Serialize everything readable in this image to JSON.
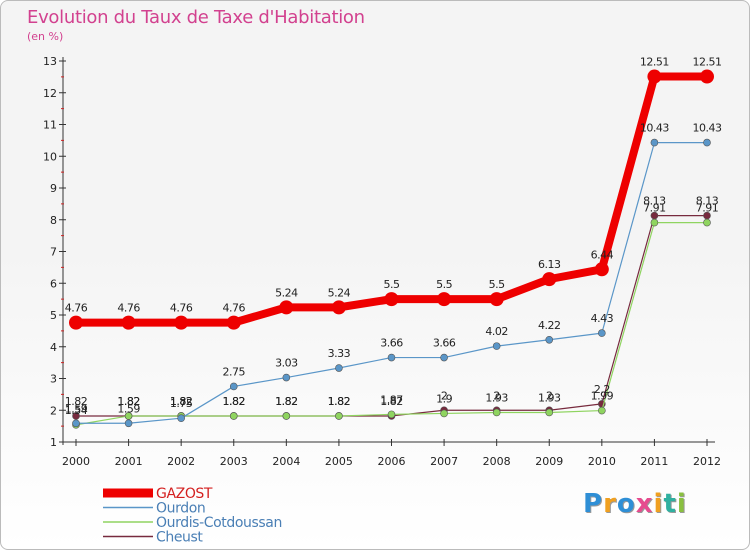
{
  "title": "Evolution du Taux de Taxe d'Habitation",
  "subtitle": "(en %)",
  "logo": {
    "text": "Proxiti",
    "letters": [
      {
        "ch": "P",
        "color": "#2f8fd6"
      },
      {
        "ch": "r",
        "color": "#f0a020"
      },
      {
        "ch": "o",
        "color": "#2f8fd6"
      },
      {
        "ch": "x",
        "color": "#e64c8f"
      },
      {
        "ch": "i",
        "color": "#f0a020"
      },
      {
        "ch": "t",
        "color": "#2fb0a0"
      },
      {
        "ch": "i",
        "color": "#8ac040"
      }
    ]
  },
  "chart_data": {
    "type": "line",
    "x": [
      2000,
      2001,
      2002,
      2003,
      2004,
      2005,
      2006,
      2007,
      2008,
      2009,
      2010,
      2011,
      2012
    ],
    "x_tick_labels": [
      "2000",
      "2001",
      "2002",
      "2003",
      "2004",
      "2005",
      "2006",
      "2007",
      "2008",
      "2009",
      "2010",
      "2011",
      "2012"
    ],
    "ylim": [
      1,
      13
    ],
    "y_ticks": [
      1,
      2,
      3,
      4,
      5,
      6,
      7,
      8,
      9,
      10,
      11,
      12,
      13
    ],
    "grid": false,
    "legend_position": "bottom-left",
    "series": [
      {
        "name": "GAZOST",
        "color": "#ee0000",
        "values": [
          4.76,
          4.76,
          4.76,
          4.76,
          5.24,
          5.24,
          5.5,
          5.5,
          5.5,
          6.13,
          6.44,
          12.51,
          12.51
        ],
        "labels": [
          "4.76",
          "4.76",
          "4.76",
          "4.76",
          "5.24",
          "5.24",
          "5.5",
          "5.5",
          "5.5",
          "6.13",
          "6.44",
          "12.51",
          "12.51"
        ]
      },
      {
        "name": "Ourdon",
        "color": "#5a96c8",
        "values": [
          1.59,
          1.59,
          1.75,
          2.75,
          3.03,
          3.33,
          3.66,
          3.66,
          4.02,
          4.22,
          4.43,
          10.43,
          10.43
        ],
        "labels": [
          "1.59",
          "1.59",
          "1.75",
          "2.75",
          "3.03",
          "3.33",
          "3.66",
          "3.66",
          "4.02",
          "4.22",
          "4.43",
          "10.43",
          "10.43"
        ]
      },
      {
        "name": "Ourdis-Cotdoussan",
        "color": "#8fd460",
        "values": [
          1.54,
          1.82,
          1.82,
          1.82,
          1.82,
          1.82,
          1.87,
          1.9,
          1.93,
          1.93,
          1.99,
          7.91,
          7.91
        ],
        "labels": [
          "1.54",
          "1.82",
          "1.82",
          "1.82",
          "1.82",
          "1.82",
          "1.87",
          "1.9",
          "1.93",
          "1.93",
          "1.99",
          "7.91",
          "7.91"
        ]
      },
      {
        "name": "Cheust",
        "color": "#772a3e",
        "values": [
          1.82,
          1.82,
          1.82,
          1.82,
          1.82,
          1.82,
          1.82,
          2,
          2,
          2,
          2.2,
          8.13,
          8.13
        ],
        "labels": [
          "1.82",
          "1.82",
          "1.82",
          "1.82",
          "1.82",
          "1.82",
          "1.82",
          "2",
          "2",
          "2",
          "2.2",
          "8.13",
          "8.13"
        ]
      }
    ]
  }
}
